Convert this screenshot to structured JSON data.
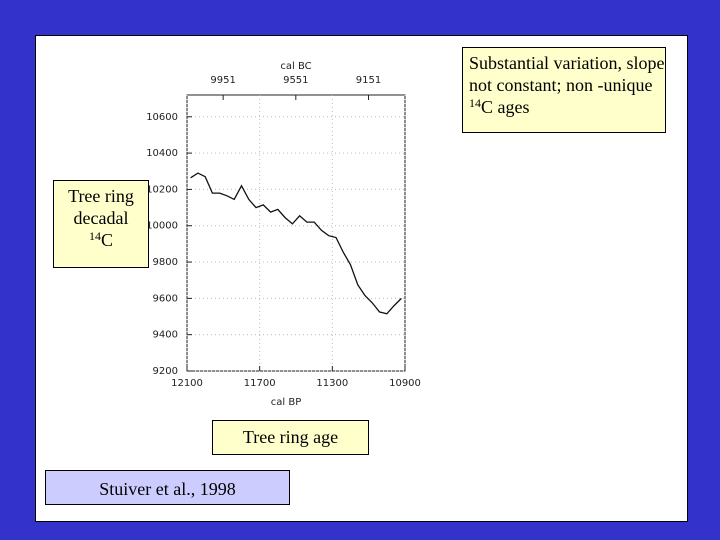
{
  "chart_data": {
    "type": "line",
    "xlabel": "cal BP",
    "x2label": "cal BC",
    "x": [
      12080,
      12040,
      12000,
      11960,
      11920,
      11880,
      11840,
      11800,
      11760,
      11720,
      11680,
      11640,
      11600,
      11560,
      11520,
      11480,
      11440,
      11400,
      11360,
      11320,
      11280,
      11240,
      11200,
      11160,
      11120,
      11080,
      11040,
      11000,
      10960,
      10920
    ],
    "values": [
      10264,
      10290,
      10270,
      10180,
      10180,
      10165,
      10145,
      10220,
      10145,
      10100,
      10115,
      10075,
      10090,
      10045,
      10010,
      10055,
      10020,
      10020,
      9975,
      9945,
      9935,
      9855,
      9785,
      9675,
      9615,
      9575,
      9525,
      9515,
      9560,
      9600
    ],
    "color": "#111111",
    "xlim": [
      12100,
      10900
    ],
    "xticks": [
      12100,
      11700,
      11300,
      10900
    ],
    "x2lim": [
      10150,
      8950
    ],
    "x2ticks": [
      9951,
      9551,
      9151
    ],
    "ylim": [
      9200,
      10720
    ],
    "yticks": [
      9200,
      9400,
      9600,
      9800,
      10000,
      10200,
      10400,
      10600
    ],
    "grid": true
  },
  "note": {
    "text": "Substantial variation, slope not constant; non -unique ",
    "sup": "14",
    "tail": "C ages"
  },
  "ylabel_box": {
    "text": "Tree ring decadal",
    "sup": "14",
    "tail": "C"
  },
  "xlabel_box": "Tree ring age",
  "source": "Stuiver et al., 1998"
}
